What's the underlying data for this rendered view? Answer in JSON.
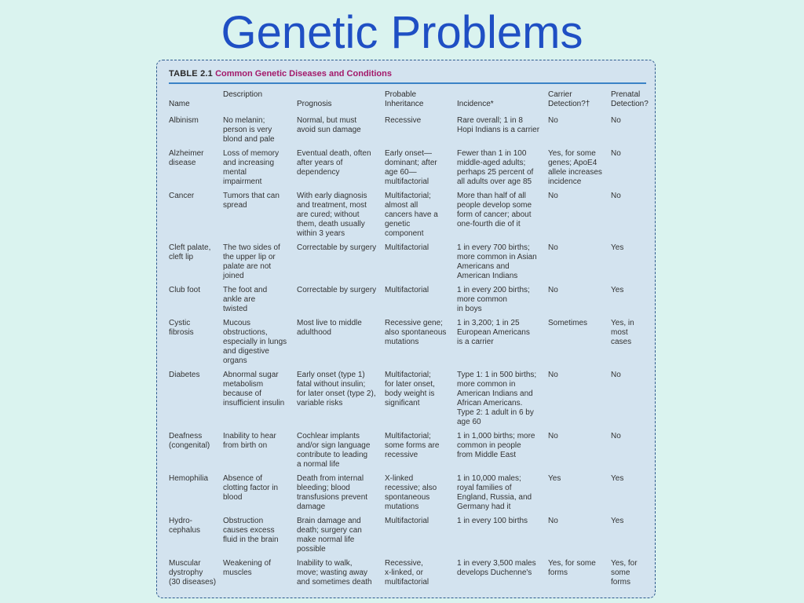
{
  "slide": {
    "title": "Genetic Problems"
  },
  "table": {
    "number": "TABLE 2.1",
    "title": "Common Genetic Diseases and Conditions",
    "headers": [
      [
        "Name"
      ],
      [
        "Description"
      ],
      [
        "Prognosis"
      ],
      [
        "Probable",
        "Inheritance"
      ],
      [
        "Incidence*"
      ],
      [
        "Carrier",
        "Detection?†"
      ],
      [
        "Prenatal",
        "Detection?"
      ]
    ],
    "rows": [
      [
        [
          "Albinism"
        ],
        [
          "No melanin;",
          "person is very",
          "blond and pale"
        ],
        [
          "Normal, but must",
          "avoid sun damage"
        ],
        [
          "Recessive"
        ],
        [
          "Rare overall; 1 in 8",
          "Hopi Indians is a carrier"
        ],
        [
          "No"
        ],
        [
          "No"
        ]
      ],
      [
        [
          "Alzheimer",
          "disease"
        ],
        [
          "Loss of memory",
          "and increasing",
          "mental",
          "impairment"
        ],
        [
          "Eventual death, often",
          "after years of",
          "dependency"
        ],
        [
          "Early onset—",
          "dominant; after",
          "age 60—",
          "multifactorial"
        ],
        [
          "Fewer than 1 in 100",
          "middle-aged adults;",
          "perhaps 25 percent of",
          "all adults over age 85"
        ],
        [
          "Yes, for some",
          "genes; ApoE4",
          "allele increases",
          "incidence"
        ],
        [
          "No"
        ]
      ],
      [
        [
          "Cancer"
        ],
        [
          "Tumors that can",
          "spread"
        ],
        [
          "With early diagnosis",
          "and treatment, most",
          "are cured; without",
          "them, death usually",
          "within 3 years"
        ],
        [
          "Multifactorial;",
          "almost all",
          "cancers have a",
          "genetic",
          "component"
        ],
        [
          "More than half of all",
          "people develop some",
          "form of cancer; about",
          "one-fourth die of it"
        ],
        [
          "No"
        ],
        [
          "No"
        ]
      ],
      [
        [
          "Cleft palate,",
          "cleft lip"
        ],
        [
          "The two sides of",
          "the upper lip or",
          "palate are not",
          "joined"
        ],
        [
          "Correctable by surgery"
        ],
        [
          "Multifactorial"
        ],
        [
          "1 in every 700 births;",
          "more common in Asian",
          "Americans and",
          "American Indians"
        ],
        [
          "No"
        ],
        [
          "Yes"
        ]
      ],
      [
        [
          "Club foot"
        ],
        [
          "The foot and",
          "ankle are",
          "twisted"
        ],
        [
          "Correctable by surgery"
        ],
        [
          "Multifactorial"
        ],
        [
          "1 in every 200 births;",
          "more common",
          "in boys"
        ],
        [
          "No"
        ],
        [
          "Yes"
        ]
      ],
      [
        [
          "Cystic",
          "fibrosis"
        ],
        [
          "Mucous",
          "obstructions,",
          "especially in lungs",
          "and digestive",
          "organs"
        ],
        [
          "Most live to middle",
          "adulthood"
        ],
        [
          "Recessive gene;",
          "also spontaneous",
          "mutations"
        ],
        [
          "1 in 3,200; 1 in 25",
          "European Americans",
          "is a carrier"
        ],
        [
          "Sometimes"
        ],
        [
          "Yes, in",
          "most",
          "cases"
        ]
      ],
      [
        [
          "Diabetes"
        ],
        [
          "Abnormal sugar",
          "metabolism",
          "because of",
          "insufficient insulin"
        ],
        [
          "Early onset (type 1)",
          "fatal without insulin;",
          "for later onset (type 2),",
          "variable risks"
        ],
        [
          "Multifactorial;",
          "for later onset,",
          "body weight is",
          "significant"
        ],
        [
          "Type 1: 1 in 500 births;",
          "more common in",
          "American Indians and",
          "African Americans.",
          "Type 2: 1 adult in 6 by",
          "age 60"
        ],
        [
          "No"
        ],
        [
          "No"
        ]
      ],
      [
        [
          "Deafness",
          "(congenital)"
        ],
        [
          "Inability to hear",
          "from birth on"
        ],
        [
          "Cochlear implants",
          "and/or sign language",
          "contribute to leading",
          "a normal life"
        ],
        [
          "Multifactorial;",
          "some forms are",
          "recessive"
        ],
        [
          "1 in 1,000 births; more",
          "common in people",
          "from Middle East"
        ],
        [
          "No"
        ],
        [
          "No"
        ]
      ],
      [
        [
          "Hemophilia"
        ],
        [
          "Absence of",
          "clotting factor in",
          "blood"
        ],
        [
          "Death from internal",
          "bleeding; blood",
          "transfusions prevent",
          "damage"
        ],
        [
          "X-linked",
          "recessive; also",
          "spontaneous",
          "mutations"
        ],
        [
          "1 in 10,000 males;",
          "royal families of",
          "England, Russia, and",
          "Germany had it"
        ],
        [
          "Yes"
        ],
        [
          "Yes"
        ]
      ],
      [
        [
          "Hydro-",
          "cephalus"
        ],
        [
          "Obstruction",
          "causes excess",
          "fluid in the brain"
        ],
        [
          "Brain damage and",
          "death; surgery can",
          "make normal life",
          "possible"
        ],
        [
          "Multifactorial"
        ],
        [
          "1 in every 100 births"
        ],
        [
          "No"
        ],
        [
          "Yes"
        ]
      ],
      [
        [
          "Muscular",
          "dystrophy",
          "(30 diseases)"
        ],
        [
          "Weakening of",
          "muscles"
        ],
        [
          "Inability to walk,",
          "move; wasting away",
          "and sometimes death"
        ],
        [
          "Recessive,",
          "x-linked, or",
          "multifactorial"
        ],
        [
          "1 in every 3,500 males",
          "develops Duchenne's"
        ],
        [
          "Yes, for some",
          "forms"
        ],
        [
          "Yes, for",
          "some",
          "forms"
        ]
      ]
    ]
  }
}
